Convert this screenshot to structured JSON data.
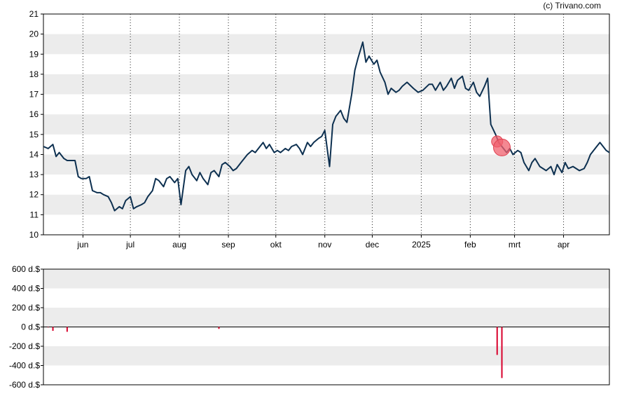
{
  "credit": "(c) Trivano.com",
  "chart_data": [
    {
      "type": "line",
      "title": "",
      "xlabel": "",
      "ylabel": "",
      "ylim": [
        10,
        21
      ],
      "yticks": [
        10,
        11,
        12,
        13,
        14,
        15,
        16,
        17,
        18,
        19,
        20,
        21
      ],
      "xrange": [
        "2024-05-07",
        "2025-04-30"
      ],
      "x_tick_labels": [
        {
          "date": "2024-06-01",
          "label": "jun"
        },
        {
          "date": "2024-07-01",
          "label": "jul"
        },
        {
          "date": "2024-08-01",
          "label": "aug"
        },
        {
          "date": "2024-09-01",
          "label": "sep"
        },
        {
          "date": "2024-10-01",
          "label": "okt"
        },
        {
          "date": "2024-11-01",
          "label": "nov"
        },
        {
          "date": "2024-12-01",
          "label": "dec"
        },
        {
          "date": "2025-01-01",
          "label": "2025"
        },
        {
          "date": "2025-02-01",
          "label": "feb"
        },
        {
          "date": "2025-03-01",
          "label": "mrt"
        },
        {
          "date": "2025-04-01",
          "label": "apr"
        }
      ],
      "grid": "alternating horizontal bands, dotted vertical lines at month starts",
      "line_color": "#0d3050",
      "series": [
        {
          "x": [
            "2024-05-07",
            "2024-05-10",
            "2024-05-13",
            "2024-05-15",
            "2024-05-17",
            "2024-05-20",
            "2024-05-22",
            "2024-05-24",
            "2024-05-27",
            "2024-05-29",
            "2024-05-31",
            "2024-06-03",
            "2024-06-05",
            "2024-06-07",
            "2024-06-10",
            "2024-06-12",
            "2024-06-14",
            "2024-06-17",
            "2024-06-19",
            "2024-06-21",
            "2024-06-24",
            "2024-06-26",
            "2024-06-28",
            "2024-07-01",
            "2024-07-03",
            "2024-07-05",
            "2024-07-08",
            "2024-07-10",
            "2024-07-12",
            "2024-07-15",
            "2024-07-17",
            "2024-07-19",
            "2024-07-22",
            "2024-07-24",
            "2024-07-26",
            "2024-07-29",
            "2024-07-31",
            "2024-08-02",
            "2024-08-05",
            "2024-08-07",
            "2024-08-09",
            "2024-08-12",
            "2024-08-14",
            "2024-08-16",
            "2024-08-19",
            "2024-08-21",
            "2024-08-23",
            "2024-08-26",
            "2024-08-28",
            "2024-08-30",
            "2024-09-02",
            "2024-09-04",
            "2024-09-06",
            "2024-09-09",
            "2024-09-11",
            "2024-09-13",
            "2024-09-16",
            "2024-09-18",
            "2024-09-20",
            "2024-09-23",
            "2024-09-25",
            "2024-09-27",
            "2024-09-30",
            "2024-10-02",
            "2024-10-04",
            "2024-10-07",
            "2024-10-09",
            "2024-10-11",
            "2024-10-14",
            "2024-10-16",
            "2024-10-18",
            "2024-10-21",
            "2024-10-23",
            "2024-10-25",
            "2024-10-28",
            "2024-10-30",
            "2024-11-01",
            "2024-11-04",
            "2024-11-06",
            "2024-11-08",
            "2024-11-11",
            "2024-11-13",
            "2024-11-15",
            "2024-11-18",
            "2024-11-20",
            "2024-11-22",
            "2024-11-25",
            "2024-11-27",
            "2024-11-29",
            "2024-12-02",
            "2024-12-04",
            "2024-12-06",
            "2024-12-09",
            "2024-12-11",
            "2024-12-13",
            "2024-12-16",
            "2024-12-18",
            "2024-12-20",
            "2024-12-23",
            "2024-12-27",
            "2024-12-30",
            "2025-01-02",
            "2025-01-06",
            "2025-01-08",
            "2025-01-10",
            "2025-01-13",
            "2025-01-15",
            "2025-01-17",
            "2025-01-20",
            "2025-01-22",
            "2025-01-24",
            "2025-01-27",
            "2025-01-29",
            "2025-01-31",
            "2025-02-03",
            "2025-02-05",
            "2025-02-07",
            "2025-02-10",
            "2025-02-12",
            "2025-02-14",
            "2025-02-17",
            "2025-02-19",
            "2025-02-21",
            "2025-02-24",
            "2025-02-26",
            "2025-02-28",
            "2025-03-03",
            "2025-03-05",
            "2025-03-07",
            "2025-03-10",
            "2025-03-12",
            "2025-03-14",
            "2025-03-17",
            "2025-03-19",
            "2025-03-21",
            "2025-03-24",
            "2025-03-26",
            "2025-03-28",
            "2025-03-31",
            "2025-04-02",
            "2025-04-04",
            "2025-04-07",
            "2025-04-09",
            "2025-04-11",
            "2025-04-14",
            "2025-04-16",
            "2025-04-18",
            "2025-04-22",
            "2025-04-24",
            "2025-04-28",
            "2025-04-30"
          ],
          "y": [
            14.4,
            14.3,
            14.5,
            13.9,
            14.1,
            13.8,
            13.7,
            13.7,
            13.7,
            12.9,
            12.8,
            12.8,
            12.9,
            12.2,
            12.1,
            12.1,
            12.0,
            11.9,
            11.6,
            11.2,
            11.4,
            11.3,
            11.7,
            11.9,
            11.3,
            11.4,
            11.5,
            11.6,
            11.9,
            12.2,
            12.8,
            12.7,
            12.4,
            12.8,
            12.9,
            12.6,
            12.8,
            11.5,
            13.2,
            13.4,
            13.0,
            12.7,
            13.1,
            12.8,
            12.5,
            13.1,
            13.2,
            12.9,
            13.5,
            13.6,
            13.4,
            13.2,
            13.3,
            13.6,
            13.8,
            14.0,
            14.2,
            14.1,
            14.3,
            14.6,
            14.3,
            14.5,
            14.1,
            14.2,
            14.1,
            14.3,
            14.2,
            14.4,
            14.5,
            14.3,
            14.0,
            14.6,
            14.4,
            14.6,
            14.8,
            14.9,
            15.2,
            13.4,
            15.5,
            15.9,
            16.2,
            15.8,
            15.6,
            17.0,
            18.2,
            18.8,
            19.6,
            18.6,
            18.9,
            18.5,
            18.7,
            18.1,
            17.6,
            17.0,
            17.3,
            17.1,
            17.2,
            17.4,
            17.6,
            17.3,
            17.1,
            17.2,
            17.5,
            17.5,
            17.2,
            17.6,
            17.2,
            17.4,
            17.8,
            17.3,
            17.7,
            17.9,
            17.3,
            17.2,
            17.6,
            17.1,
            16.9,
            17.4,
            17.8,
            15.5,
            15.0,
            14.6,
            14.4,
            14.1,
            14.3,
            14.0,
            14.2,
            14.1,
            13.6,
            13.2,
            13.6,
            13.8,
            13.4,
            13.3,
            13.2,
            13.4,
            13.0,
            13.5,
            13.1,
            13.6,
            13.3,
            13.4,
            13.3,
            13.2,
            13.3,
            13.6,
            14.0,
            14.4,
            14.6,
            14.2,
            14.1
          ]
        }
      ],
      "markers": [
        {
          "date": "2025-02-18",
          "y": 14.65,
          "size": "medium"
        },
        {
          "date": "2025-02-21",
          "y": 14.35,
          "size": "large"
        }
      ]
    },
    {
      "type": "bar",
      "title": "",
      "ylabel": "",
      "ylim": [
        -600,
        600
      ],
      "yticks": [
        600,
        400,
        200,
        0,
        -200,
        -400,
        -600
      ],
      "ytick_labels": [
        "600 d.$",
        "400 d.$",
        "200 d.$",
        "0 d.$",
        "-200 d.$",
        "-400 d.$",
        "-600 d.$"
      ],
      "bar_color": "#d9002c",
      "bars": [
        {
          "date": "2024-05-10",
          "value": -5
        },
        {
          "date": "2024-05-13",
          "value": -40
        },
        {
          "date": "2024-05-22",
          "value": -50
        },
        {
          "date": "2024-08-26",
          "value": -20
        },
        {
          "date": "2025-02-18",
          "value": -290
        },
        {
          "date": "2025-02-21",
          "value": -530
        }
      ]
    }
  ]
}
